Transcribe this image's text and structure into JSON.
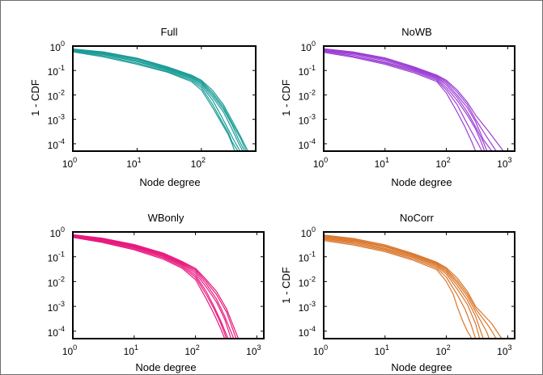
{
  "chart_data": [
    {
      "type": "line",
      "title": "Full",
      "xlabel": "Node degree",
      "ylabel": "1 - CDF",
      "xscale": "log",
      "yscale": "log",
      "xlim": [
        1,
        700
      ],
      "ylim": [
        5e-05,
        1
      ],
      "xticks": [
        "10^0",
        "10^1",
        "10^2"
      ],
      "yticks": [
        "10^0",
        "10^-1",
        "10^-2",
        "10^-3",
        "10^-4"
      ],
      "color": "#1a9c96",
      "series": [
        {
          "x": [
            1,
            3,
            10,
            30,
            70,
            100,
            150,
            200,
            260,
            300,
            330
          ],
          "y": [
            0.58,
            0.36,
            0.18,
            0.085,
            0.035,
            0.016,
            0.003,
            0.0008,
            0.00025,
            0.0001,
            5e-05
          ]
        },
        {
          "x": [
            1,
            3,
            10,
            30,
            70,
            100,
            150,
            200,
            260,
            300,
            370
          ],
          "y": [
            0.62,
            0.4,
            0.2,
            0.09,
            0.04,
            0.02,
            0.004,
            0.001,
            0.0003,
            0.00012,
            5e-05
          ]
        },
        {
          "x": [
            1,
            3,
            10,
            30,
            70,
            100,
            150,
            200,
            260,
            330,
            400
          ],
          "y": [
            0.65,
            0.45,
            0.23,
            0.1,
            0.045,
            0.024,
            0.006,
            0.0015,
            0.0004,
            0.00012,
            5e-05
          ]
        },
        {
          "x": [
            1,
            3,
            10,
            30,
            70,
            100,
            150,
            220,
            300,
            370,
            440
          ],
          "y": [
            0.69,
            0.48,
            0.25,
            0.11,
            0.05,
            0.028,
            0.008,
            0.002,
            0.0004,
            0.00012,
            5e-05
          ]
        },
        {
          "x": [
            1,
            3,
            10,
            30,
            70,
            100,
            150,
            220,
            300,
            380,
            470
          ],
          "y": [
            0.72,
            0.52,
            0.28,
            0.12,
            0.055,
            0.032,
            0.01,
            0.0026,
            0.0006,
            0.00015,
            5e-05
          ]
        },
        {
          "x": [
            1,
            3,
            10,
            30,
            70,
            100,
            150,
            220,
            300,
            400,
            500
          ],
          "y": [
            0.74,
            0.55,
            0.3,
            0.13,
            0.06,
            0.036,
            0.012,
            0.0032,
            0.0007,
            0.00018,
            5e-05
          ]
        },
        {
          "x": [
            1,
            3,
            10,
            30,
            70,
            100,
            150,
            220,
            300,
            400,
            530
          ],
          "y": [
            0.76,
            0.58,
            0.32,
            0.14,
            0.065,
            0.04,
            0.015,
            0.004,
            0.0009,
            0.00022,
            5e-05
          ]
        }
      ]
    },
    {
      "type": "line",
      "title": "NoWB",
      "xlabel": "Node degree",
      "ylabel": "1 - CDF",
      "xscale": "log",
      "yscale": "log",
      "xlim": [
        1,
        1300
      ],
      "ylim": [
        5e-05,
        1
      ],
      "xticks": [
        "10^0",
        "10^1",
        "10^2",
        "10^3"
      ],
      "yticks": [
        "10^0",
        "10^-1",
        "10^-2",
        "10^-3",
        "10^-4"
      ],
      "color": "#9c3fd4",
      "series": [
        {
          "x": [
            1,
            3,
            10,
            30,
            70,
            100,
            150,
            200,
            260,
            300
          ],
          "y": [
            0.55,
            0.35,
            0.18,
            0.08,
            0.035,
            0.012,
            0.002,
            0.0005,
            0.00012,
            5e-05
          ]
        },
        {
          "x": [
            1,
            3,
            10,
            30,
            70,
            100,
            150,
            200,
            260,
            330,
            380
          ],
          "y": [
            0.6,
            0.38,
            0.2,
            0.09,
            0.04,
            0.016,
            0.004,
            0.001,
            0.0003,
            0.0001,
            5e-05
          ]
        },
        {
          "x": [
            1,
            3,
            10,
            30,
            70,
            100,
            150,
            220,
            300,
            380,
            420
          ],
          "y": [
            0.64,
            0.43,
            0.22,
            0.1,
            0.045,
            0.02,
            0.006,
            0.0015,
            0.0004,
            0.0001,
            5e-05
          ]
        },
        {
          "x": [
            1,
            3,
            10,
            30,
            70,
            100,
            150,
            220,
            300,
            400,
            460
          ],
          "y": [
            0.68,
            0.48,
            0.25,
            0.11,
            0.05,
            0.025,
            0.008,
            0.002,
            0.0005,
            0.00012,
            5e-05
          ]
        },
        {
          "x": [
            1,
            3,
            10,
            30,
            70,
            100,
            150,
            220,
            300,
            400,
            550
          ],
          "y": [
            0.72,
            0.52,
            0.28,
            0.12,
            0.055,
            0.03,
            0.01,
            0.003,
            0.0008,
            0.00015,
            5e-05
          ]
        },
        {
          "x": [
            1,
            3,
            10,
            30,
            70,
            100,
            150,
            220,
            300,
            450,
            650
          ],
          "y": [
            0.75,
            0.55,
            0.3,
            0.13,
            0.06,
            0.035,
            0.013,
            0.004,
            0.001,
            0.0002,
            5e-05
          ]
        },
        {
          "x": [
            1,
            3,
            10,
            30,
            70,
            100,
            150,
            220,
            300,
            500,
            850
          ],
          "y": [
            0.78,
            0.58,
            0.33,
            0.14,
            0.065,
            0.04,
            0.016,
            0.005,
            0.0015,
            0.0003,
            5e-05
          ]
        }
      ]
    },
    {
      "type": "line",
      "title": "WBonly",
      "xlabel": "Node degree",
      "ylabel": "",
      "xscale": "log",
      "yscale": "log",
      "xlim": [
        1,
        1300
      ],
      "ylim": [
        5e-05,
        1
      ],
      "xticks": [
        "10^0",
        "10^1",
        "10^2",
        "10^3"
      ],
      "yticks": [
        "10^0",
        "10^-1",
        "10^-2",
        "10^-3",
        "10^-4"
      ],
      "color": "#e8197d",
      "series": [
        {
          "x": [
            1,
            3,
            10,
            30,
            60,
            100,
            150,
            200,
            260,
            300
          ],
          "y": [
            0.6,
            0.38,
            0.19,
            0.08,
            0.035,
            0.012,
            0.002,
            0.0005,
            0.00012,
            5e-05
          ]
        },
        {
          "x": [
            1,
            3,
            10,
            30,
            60,
            100,
            150,
            200,
            260,
            320
          ],
          "y": [
            0.63,
            0.41,
            0.21,
            0.09,
            0.04,
            0.015,
            0.003,
            0.0008,
            0.0002,
            5e-05
          ]
        },
        {
          "x": [
            1,
            3,
            10,
            30,
            60,
            100,
            150,
            200,
            260,
            340
          ],
          "y": [
            0.66,
            0.44,
            0.23,
            0.1,
            0.045,
            0.018,
            0.004,
            0.001,
            0.00025,
            5e-05
          ]
        },
        {
          "x": [
            1,
            3,
            10,
            30,
            60,
            100,
            150,
            220,
            300,
            380
          ],
          "y": [
            0.69,
            0.47,
            0.25,
            0.11,
            0.05,
            0.022,
            0.006,
            0.0015,
            0.0003,
            5e-05
          ]
        },
        {
          "x": [
            1,
            3,
            10,
            30,
            60,
            100,
            150,
            220,
            300,
            420
          ],
          "y": [
            0.72,
            0.5,
            0.27,
            0.12,
            0.055,
            0.026,
            0.008,
            0.002,
            0.0004,
            5e-05
          ]
        },
        {
          "x": [
            1,
            3,
            10,
            30,
            60,
            100,
            150,
            220,
            320,
            460
          ],
          "y": [
            0.75,
            0.53,
            0.29,
            0.13,
            0.06,
            0.03,
            0.01,
            0.003,
            0.0006,
            5e-05
          ]
        },
        {
          "x": [
            1,
            3,
            10,
            30,
            60,
            100,
            150,
            220,
            320,
            500
          ],
          "y": [
            0.78,
            0.56,
            0.31,
            0.14,
            0.065,
            0.034,
            0.012,
            0.004,
            0.0008,
            5e-05
          ]
        }
      ]
    },
    {
      "type": "line",
      "title": "NoCorr",
      "xlabel": "Node degree",
      "ylabel": "1 - CDF",
      "xscale": "log",
      "yscale": "log",
      "xlim": [
        1,
        1300
      ],
      "ylim": [
        5e-05,
        1
      ],
      "xticks": [
        "10^0",
        "10^1",
        "10^2",
        "10^3"
      ],
      "yticks": [
        "10^0",
        "10^-1",
        "10^-2",
        "10^-3",
        "10^-4"
      ],
      "color": "#d9762a",
      "series": [
        {
          "x": [
            1,
            3,
            10,
            30,
            70,
            100,
            130,
            150,
            180,
            220,
            260
          ],
          "y": [
            0.45,
            0.3,
            0.16,
            0.07,
            0.03,
            0.01,
            0.003,
            0.001,
            0.0003,
            0.0001,
            5e-05
          ]
        },
        {
          "x": [
            1,
            3,
            10,
            30,
            70,
            100,
            150,
            200,
            250,
            300
          ],
          "y": [
            0.5,
            0.34,
            0.18,
            0.08,
            0.035,
            0.015,
            0.003,
            0.0008,
            0.0002,
            5e-05
          ]
        },
        {
          "x": [
            1,
            3,
            10,
            30,
            70,
            100,
            150,
            220,
            300,
            350
          ],
          "y": [
            0.55,
            0.38,
            0.2,
            0.09,
            0.04,
            0.02,
            0.005,
            0.0012,
            0.0002,
            5e-05
          ]
        },
        {
          "x": [
            1,
            3,
            10,
            30,
            70,
            100,
            150,
            220,
            300,
            400
          ],
          "y": [
            0.6,
            0.42,
            0.22,
            0.1,
            0.045,
            0.024,
            0.007,
            0.0018,
            0.0004,
            5e-05
          ]
        },
        {
          "x": [
            1,
            3,
            10,
            30,
            70,
            100,
            150,
            220,
            300,
            450,
            500
          ],
          "y": [
            0.65,
            0.46,
            0.25,
            0.11,
            0.05,
            0.028,
            0.009,
            0.0025,
            0.0006,
            0.0001,
            5e-05
          ]
        },
        {
          "x": [
            1,
            3,
            10,
            30,
            70,
            100,
            150,
            220,
            300,
            500,
            650
          ],
          "y": [
            0.7,
            0.5,
            0.27,
            0.12,
            0.055,
            0.032,
            0.011,
            0.0032,
            0.0008,
            0.00015,
            5e-05
          ]
        },
        {
          "x": [
            1,
            3,
            10,
            30,
            70,
            100,
            150,
            220,
            300,
            550,
            800
          ],
          "y": [
            0.75,
            0.55,
            0.3,
            0.13,
            0.06,
            0.036,
            0.014,
            0.004,
            0.001,
            0.0002,
            5e-05
          ]
        }
      ]
    }
  ]
}
